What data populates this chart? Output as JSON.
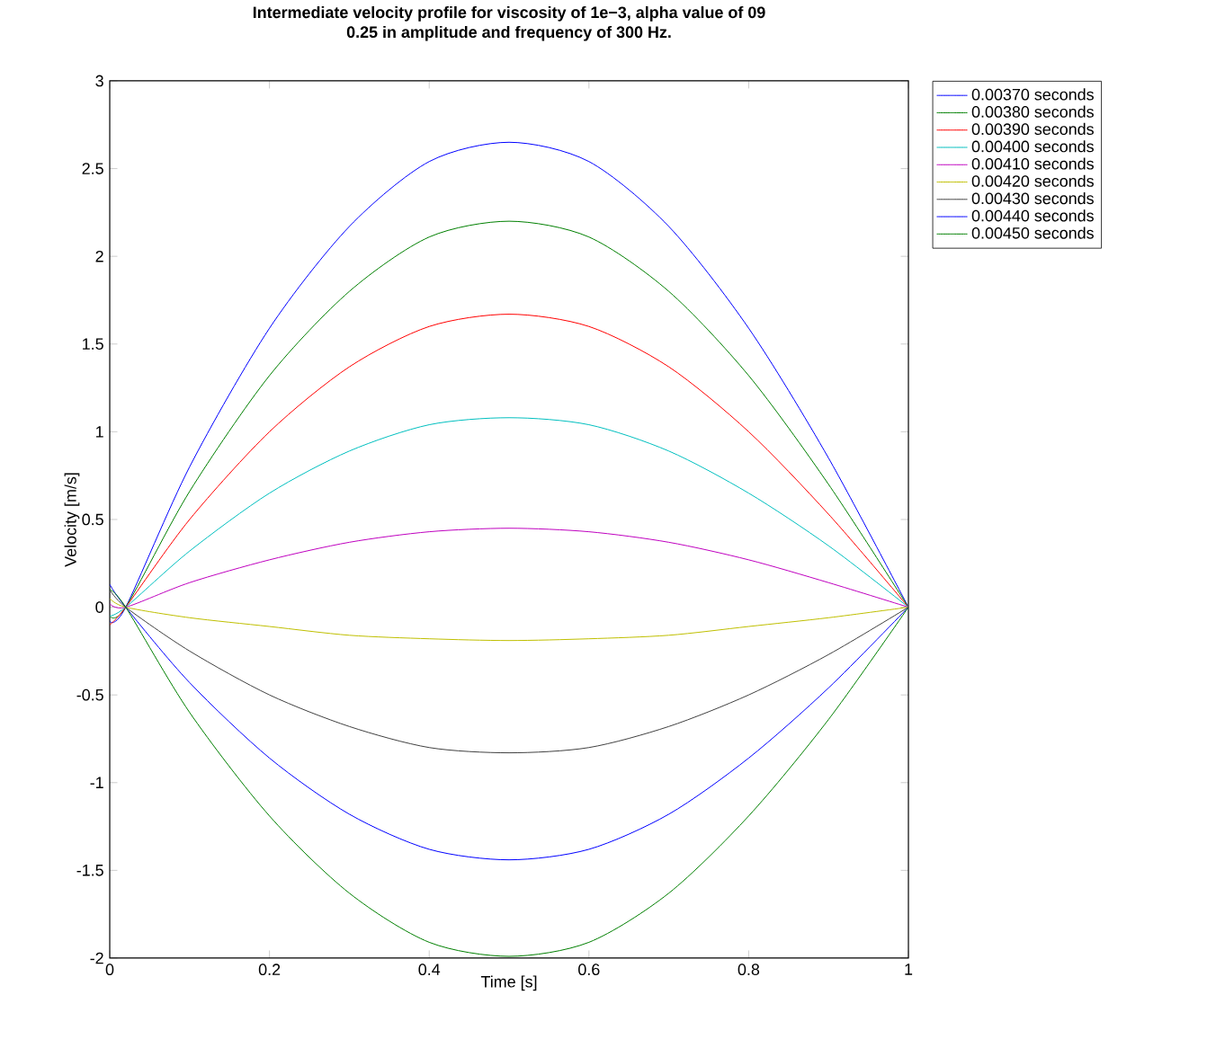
{
  "chart_data": {
    "type": "line",
    "title": "Intermediate velocity profile for viscosity of 1e−3, alpha value of 09",
    "subtitle": "0.25 in amplitude and frequency of 300 Hz.",
    "xlabel": "Time [s]",
    "ylabel": "Velocity [m/s]",
    "x": [
      0,
      0.02,
      0.1,
      0.2,
      0.3,
      0.4,
      0.5,
      0.6,
      0.7,
      0.8,
      0.9,
      1
    ],
    "xlim": [
      0,
      1
    ],
    "ylim": [
      -2,
      3
    ],
    "xticks": [
      0,
      0.2,
      0.4,
      0.6,
      0.8,
      1
    ],
    "yticks": [
      -2,
      -1.5,
      -1,
      -0.5,
      0,
      0.5,
      1,
      1.5,
      2,
      2.5,
      3
    ],
    "grid": false,
    "legend": "top right",
    "marker": "none",
    "line_style": "solid",
    "series": [
      {
        "name": "0.00370 seconds",
        "color": "#0000ff",
        "values": [
          -0.08,
          0,
          0.8,
          1.59,
          2.17,
          2.54,
          2.65,
          2.54,
          2.17,
          1.59,
          0.85,
          0
        ]
      },
      {
        "name": "0.00380 seconds",
        "color": "#008000",
        "values": [
          -0.05,
          0,
          0.66,
          1.32,
          1.8,
          2.11,
          2.2,
          2.11,
          1.8,
          1.32,
          0.7,
          0
        ]
      },
      {
        "name": "0.00390 seconds",
        "color": "#ff0000",
        "values": [
          -0.1,
          0,
          0.5,
          1.0,
          1.37,
          1.6,
          1.67,
          1.6,
          1.37,
          1.0,
          0.53,
          0
        ]
      },
      {
        "name": "0.00400 seconds",
        "color": "#00bfbf",
        "values": [
          -0.05,
          0,
          0.32,
          0.65,
          0.89,
          1.04,
          1.08,
          1.04,
          0.89,
          0.65,
          0.35,
          0
        ]
      },
      {
        "name": "0.00410 seconds",
        "color": "#bf00bf",
        "values": [
          0.02,
          0,
          0.14,
          0.27,
          0.37,
          0.43,
          0.45,
          0.43,
          0.37,
          0.27,
          0.14,
          0
        ]
      },
      {
        "name": "0.00420 seconds",
        "color": "#bfbf00",
        "values": [
          0.05,
          0,
          -0.06,
          -0.11,
          -0.16,
          -0.18,
          -0.19,
          -0.18,
          -0.16,
          -0.11,
          -0.06,
          0
        ]
      },
      {
        "name": "0.00430 seconds",
        "color": "#404040",
        "values": [
          0.1,
          0,
          -0.25,
          -0.5,
          -0.68,
          -0.8,
          -0.83,
          -0.8,
          -0.68,
          -0.5,
          -0.27,
          0
        ]
      },
      {
        "name": "0.00440 seconds",
        "color": "#0000ff",
        "values": [
          0.13,
          0,
          -0.43,
          -0.86,
          -1.18,
          -1.38,
          -1.44,
          -1.38,
          -1.18,
          -0.86,
          -0.46,
          0
        ]
      },
      {
        "name": "0.00450 seconds",
        "color": "#008000",
        "values": [
          0.1,
          0,
          -0.6,
          -1.19,
          -1.63,
          -1.91,
          -1.99,
          -1.91,
          -1.63,
          -1.19,
          -0.64,
          0
        ]
      }
    ]
  }
}
